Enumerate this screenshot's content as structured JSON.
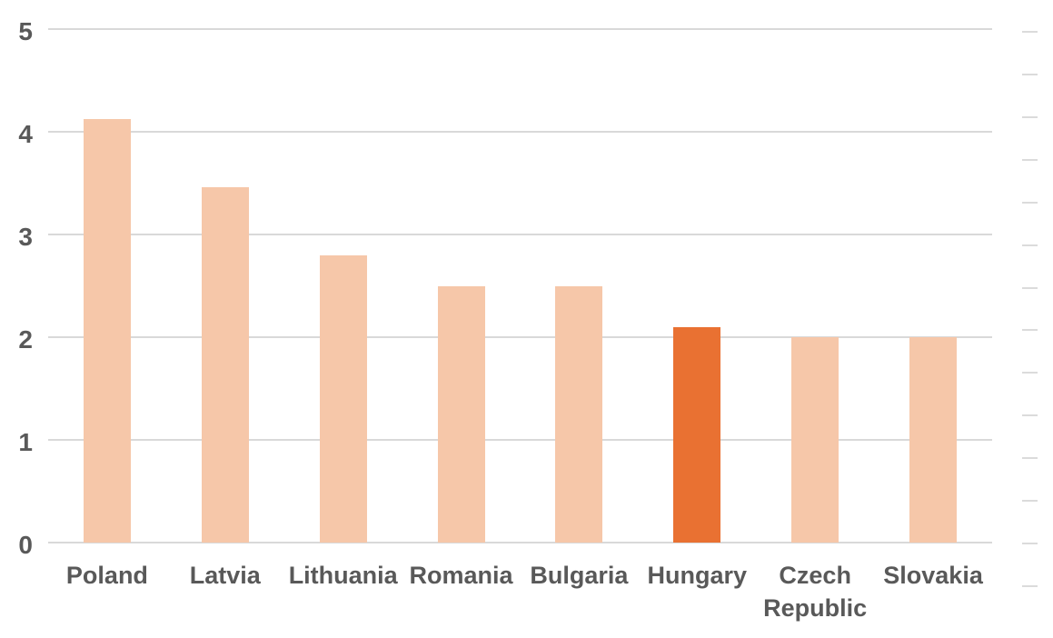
{
  "chart_data": {
    "type": "bar",
    "title": "",
    "categories": [
      "Poland",
      "Latvia",
      "Lithuania",
      "Romania",
      "Bulgaria",
      "Hungary",
      "Czech Republic",
      "Slovakia"
    ],
    "values": [
      4.12,
      3.46,
      2.8,
      2.5,
      2.5,
      2.1,
      2.0,
      2.0
    ],
    "highlight_index": 5,
    "bar_color": "#F6C7A9",
    "highlight_color": "#E97132",
    "ylabel": "",
    "xlabel": "",
    "ylim": [
      0,
      5
    ],
    "yticks": [
      0,
      1,
      2,
      3,
      4,
      5
    ],
    "ytick_labels": [
      "0",
      "1",
      "2",
      "3",
      "4",
      "5"
    ],
    "grid": true,
    "gridline_color": "#D9D9D9",
    "axis_text_color": "#595959",
    "legend": "none",
    "secondary_axis": {
      "side": "right",
      "tick_count": 14,
      "tick_labels_visible": false,
      "tick_color": "#DBDBDB"
    }
  }
}
